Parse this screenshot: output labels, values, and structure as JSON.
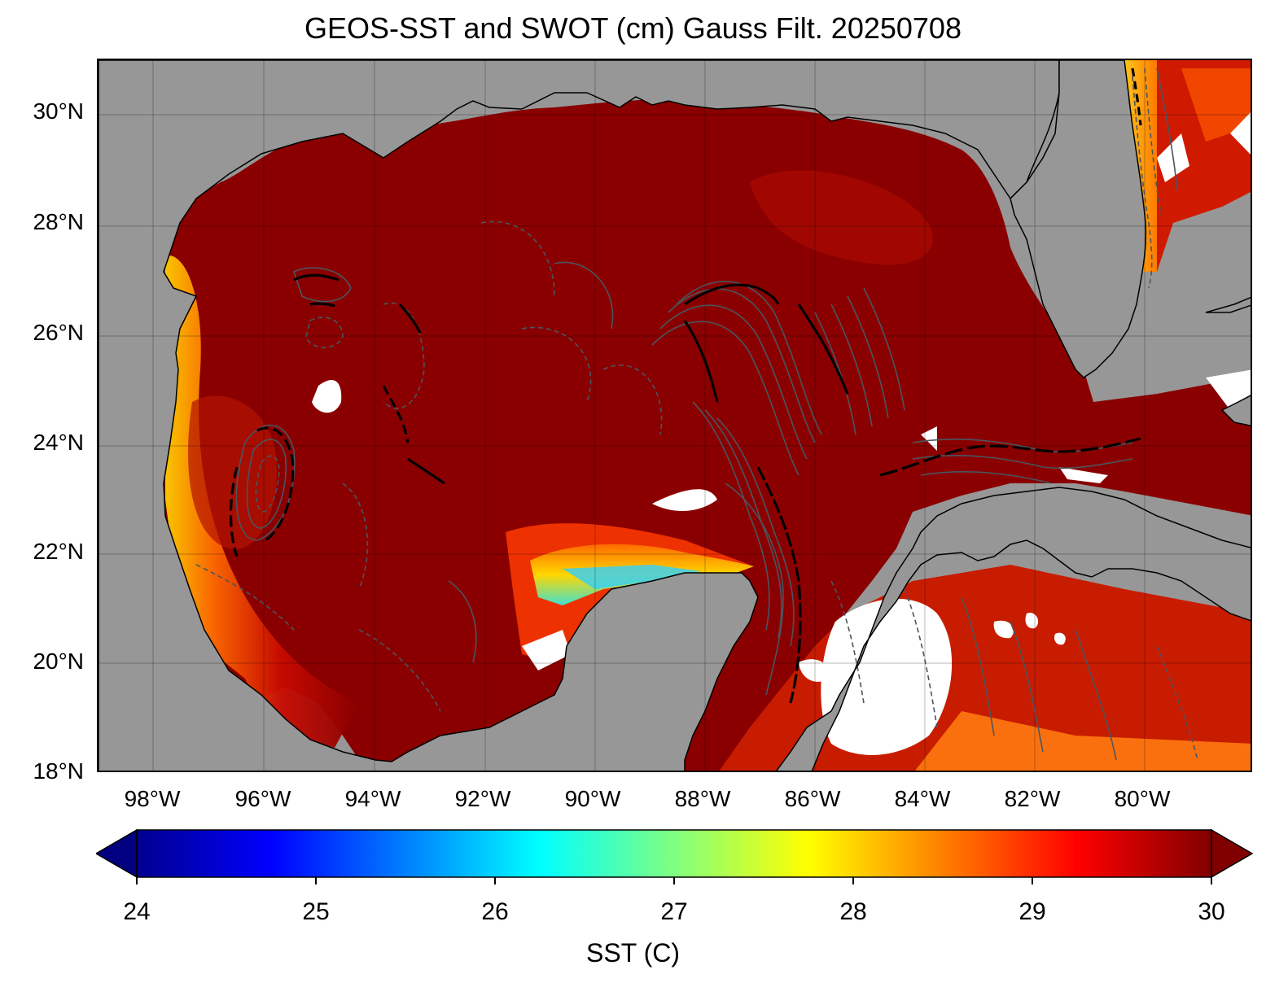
{
  "title": "GEOS-SST  and SWOT (cm) Gauss Filt. 20250708",
  "map": {
    "lat_labels": [
      "30°N",
      "28°N",
      "26°N",
      "24°N",
      "22°N",
      "20°N",
      "18°N"
    ],
    "lon_labels": [
      "98°W",
      "96°W",
      "94°W",
      "92°W",
      "90°W",
      "88°W",
      "86°W",
      "84°W",
      "82°W",
      "80°W"
    ],
    "land_color": "#979797",
    "gridlines": true
  },
  "colorbar": {
    "label": "SST (C)",
    "ticks": [
      "24",
      "25",
      "26",
      "27",
      "28",
      "29",
      "30"
    ],
    "vmin": 24,
    "vmax": 30,
    "colormap": "jet",
    "extend": "both"
  }
}
